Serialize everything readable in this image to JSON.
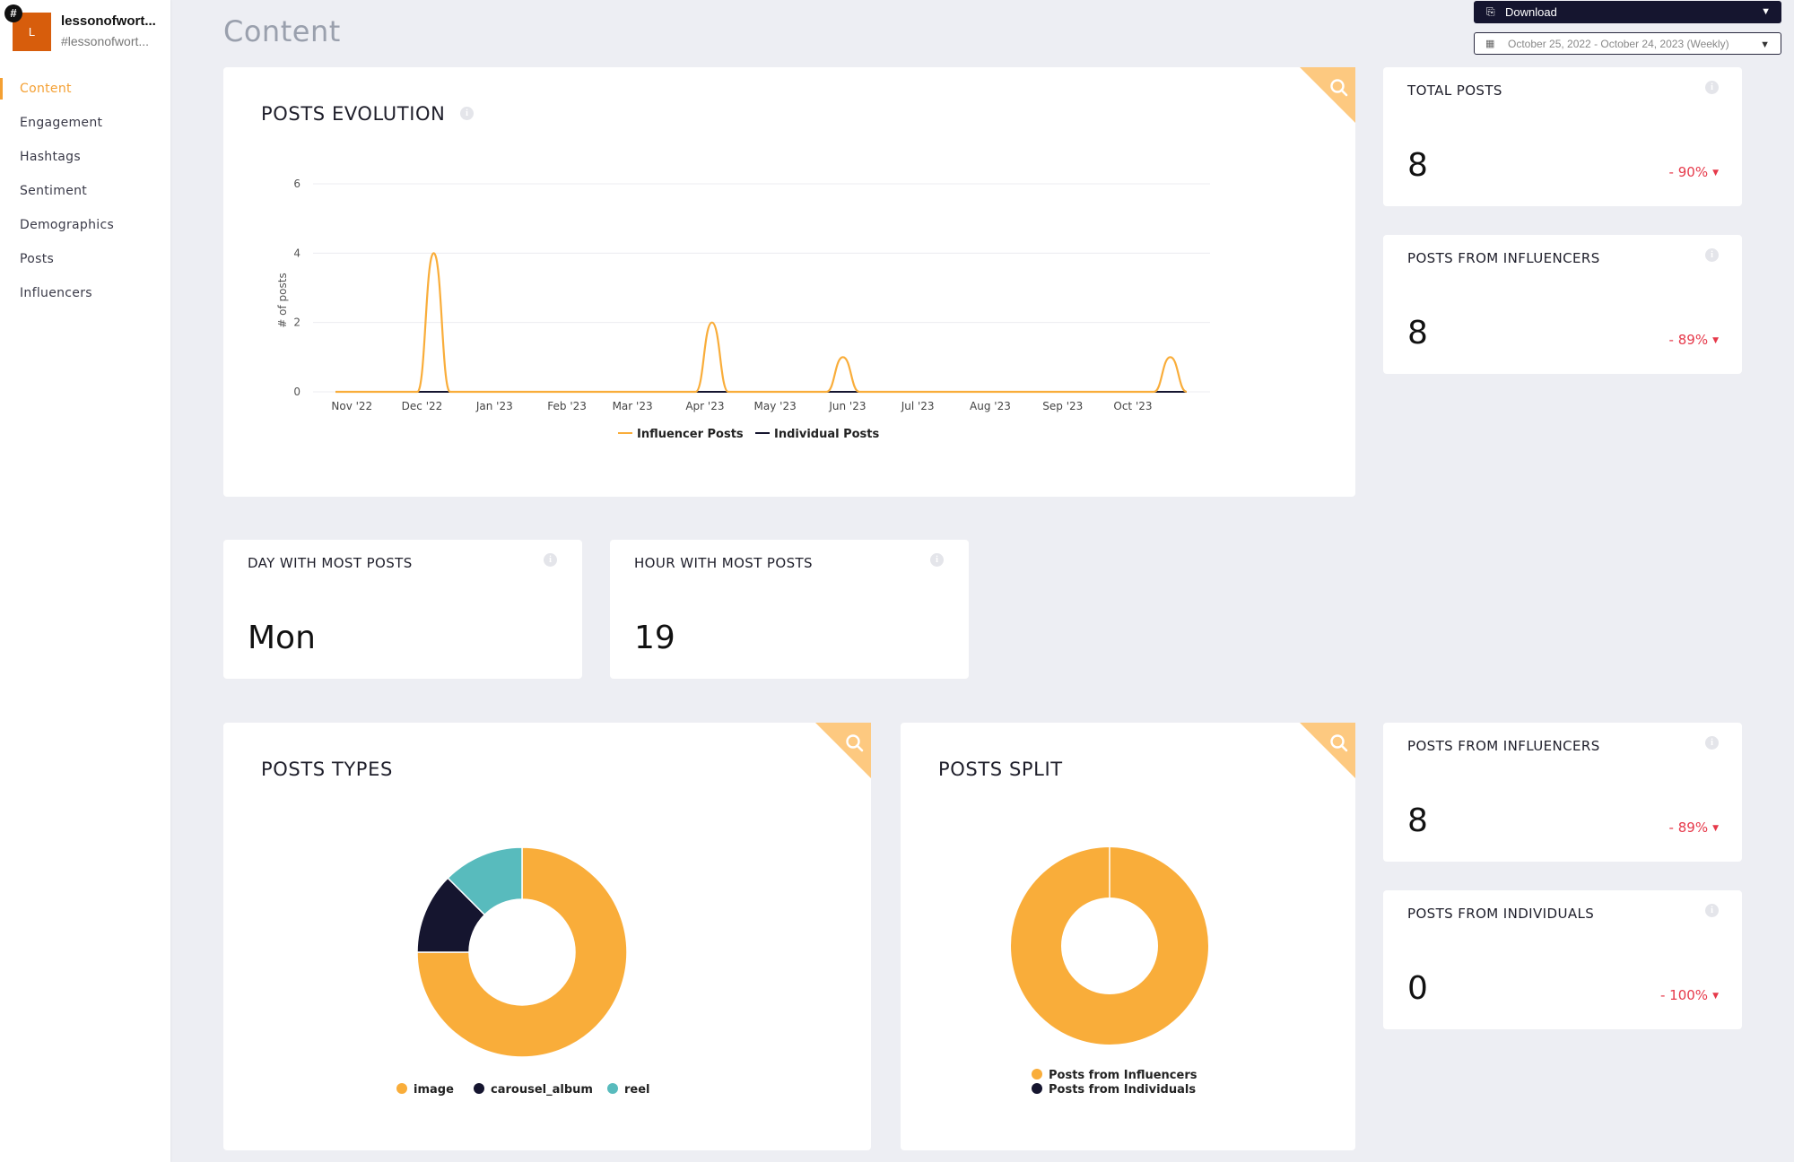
{
  "account": {
    "avatar_letter": "L",
    "badge": "#",
    "name": "lessonofwort...",
    "handle": "#lessonofwort..."
  },
  "nav": {
    "items": [
      {
        "label": "Content",
        "active": true
      },
      {
        "label": "Engagement"
      },
      {
        "label": "Hashtags"
      },
      {
        "label": "Sentiment"
      },
      {
        "label": "Demographics"
      },
      {
        "label": "Posts"
      },
      {
        "label": "Influencers"
      }
    ]
  },
  "page": {
    "title": "Content"
  },
  "toolbar": {
    "download_label": "Download",
    "date_range": "October 25, 2022 - October 24, 2023 (Weekly)"
  },
  "colors": {
    "accent": "#f9ad3a",
    "dark": "#15152f",
    "teal": "#58bbbd",
    "negative": "#e6394a"
  },
  "posts_evolution": {
    "title": "POSTS EVOLUTION",
    "ylabel": "# of posts"
  },
  "kpis": {
    "total_posts": {
      "label": "TOTAL POSTS",
      "value": "8",
      "change": "- 90%"
    },
    "posts_from_influencers": {
      "label": "POSTS FROM INFLUENCERS",
      "value": "8",
      "change": "- 89%"
    },
    "posts_from_influencers_2": {
      "label": "POSTS FROM INFLUENCERS",
      "value": "8",
      "change": "- 89%"
    },
    "posts_from_individuals": {
      "label": "POSTS FROM INDIVIDUALS",
      "value": "0",
      "change": "- 100%"
    },
    "day_most_posts": {
      "label": "DAY WITH MOST POSTS",
      "value": "Mon"
    },
    "hour_most_posts": {
      "label": "HOUR WITH MOST POSTS",
      "value": "19"
    }
  },
  "posts_types": {
    "title": "POSTS TYPES"
  },
  "posts_split": {
    "title": "POSTS SPLIT"
  },
  "chart_data": [
    {
      "type": "line",
      "ylabel": "# of posts",
      "ylim": [
        0,
        6
      ],
      "yticks": [
        "0",
        "2",
        "4",
        "6"
      ],
      "x_tick_labels": [
        "Nov '22",
        "Dec '22",
        "Jan '23",
        "Feb '23",
        "Mar '23",
        "Apr '23",
        "May '23",
        "Jun '23",
        "Jul '23",
        "Aug '23",
        "Sep '23",
        "Oct '23"
      ],
      "x": [
        "2022-10-25",
        "2022-11-01",
        "2022-11-08",
        "2022-11-15",
        "2022-11-22",
        "2022-11-29",
        "2022-12-06",
        "2022-12-13",
        "2022-12-20",
        "2022-12-27",
        "2023-01-03",
        "2023-01-10",
        "2023-01-17",
        "2023-01-24",
        "2023-01-31",
        "2023-02-07",
        "2023-02-14",
        "2023-02-21",
        "2023-02-28",
        "2023-03-07",
        "2023-03-14",
        "2023-03-21",
        "2023-03-28",
        "2023-04-04",
        "2023-04-11",
        "2023-04-18",
        "2023-04-25",
        "2023-05-02",
        "2023-05-09",
        "2023-05-16",
        "2023-05-23",
        "2023-05-30",
        "2023-06-06",
        "2023-06-13",
        "2023-06-20",
        "2023-06-27",
        "2023-07-04",
        "2023-07-11",
        "2023-07-18",
        "2023-07-25",
        "2023-08-01",
        "2023-08-08",
        "2023-08-15",
        "2023-08-22",
        "2023-08-29",
        "2023-09-05",
        "2023-09-12",
        "2023-09-19",
        "2023-09-26",
        "2023-10-03",
        "2023-10-10",
        "2023-10-17",
        "2023-10-24"
      ],
      "series": [
        {
          "name": "Influencer Posts",
          "color": "#f9ad3a",
          "values": [
            0,
            0,
            0,
            0,
            0,
            0,
            4,
            0,
            0,
            0,
            0,
            0,
            0,
            0,
            0,
            0,
            0,
            0,
            0,
            0,
            0,
            0,
            0,
            2,
            0,
            0,
            0,
            0,
            0,
            0,
            0,
            1,
            0,
            0,
            0,
            0,
            0,
            0,
            0,
            0,
            0,
            0,
            0,
            0,
            0,
            0,
            0,
            0,
            0,
            0,
            0,
            1,
            0
          ]
        },
        {
          "name": "Individual Posts",
          "color": "#15152f",
          "values": [
            0,
            0,
            0,
            0,
            0,
            0,
            0,
            0,
            0,
            0,
            0,
            0,
            0,
            0,
            0,
            0,
            0,
            0,
            0,
            0,
            0,
            0,
            0,
            0,
            0,
            0,
            0,
            0,
            0,
            0,
            0,
            0,
            0,
            0,
            0,
            0,
            0,
            0,
            0,
            0,
            0,
            0,
            0,
            0,
            0,
            0,
            0,
            0,
            0,
            0,
            0,
            0,
            0
          ]
        }
      ]
    },
    {
      "type": "pie",
      "title": "POSTS TYPES",
      "categories": [
        "image",
        "carousel_album",
        "reel"
      ],
      "values": [
        6,
        1,
        1
      ],
      "colors": [
        "#f9ad3a",
        "#15152f",
        "#58bbbd"
      ]
    },
    {
      "type": "pie",
      "title": "POSTS SPLIT",
      "categories": [
        "Posts from Influencers",
        "Posts from Individuals"
      ],
      "values": [
        8,
        0
      ],
      "colors": [
        "#f9ad3a",
        "#15152f"
      ]
    }
  ]
}
